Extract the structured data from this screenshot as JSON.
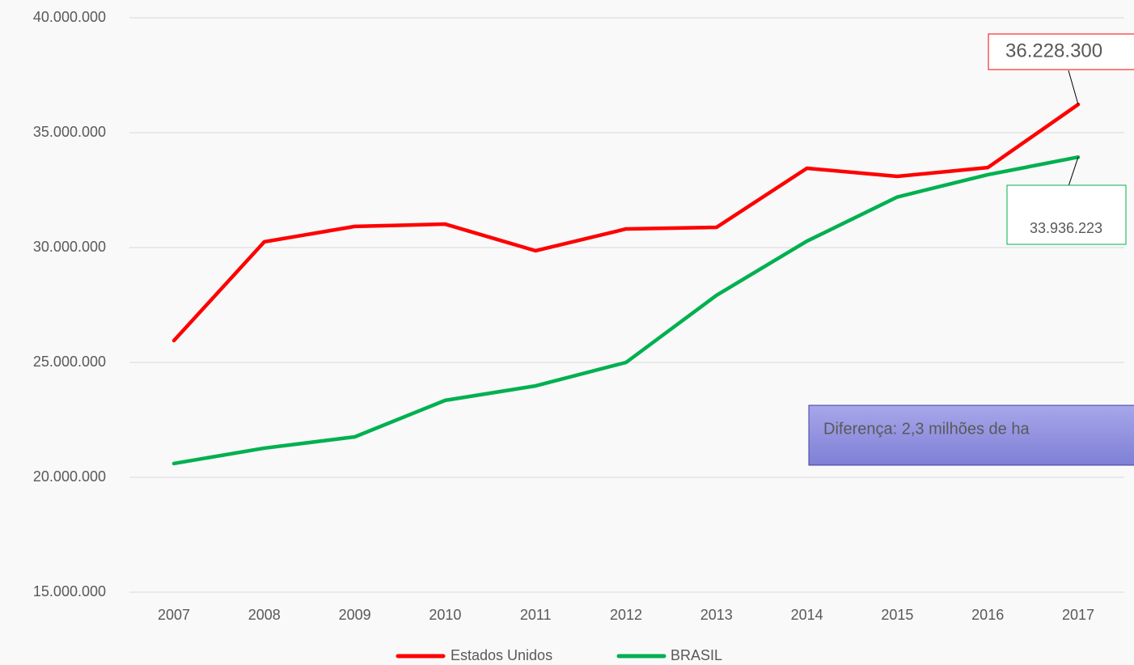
{
  "chart_data": {
    "type": "line",
    "categories": [
      "2007",
      "2008",
      "2009",
      "2010",
      "2011",
      "2012",
      "2013",
      "2014",
      "2015",
      "2016",
      "2017"
    ],
    "series": [
      {
        "name": "Estados Unidos",
        "color": "#ff0000",
        "values": [
          25950000,
          30250000,
          30920000,
          31020000,
          29860000,
          30810000,
          30880000,
          33450000,
          33100000,
          33480000,
          36228300
        ],
        "value_labels": [
          null,
          null,
          null,
          null,
          null,
          null,
          null,
          null,
          null,
          null,
          "36.228.300"
        ]
      },
      {
        "name": "BRASIL",
        "color": "#00b050",
        "values": [
          20600000,
          21270000,
          21760000,
          23350000,
          23980000,
          25000000,
          27920000,
          30280000,
          32200000,
          33170000,
          33936223
        ],
        "value_labels": [
          null,
          null,
          null,
          null,
          null,
          null,
          null,
          null,
          null,
          null,
          "33.936.223"
        ]
      }
    ],
    "ylim": [
      15000000,
      40000000
    ],
    "yticks": [
      {
        "value": 15000000,
        "label": "15.000.000"
      },
      {
        "value": 20000000,
        "label": "20.000.000"
      },
      {
        "value": 25000000,
        "label": "25.000.000"
      },
      {
        "value": 30000000,
        "label": "30.000.000"
      },
      {
        "value": 35000000,
        "label": "35.000.000"
      },
      {
        "value": 40000000,
        "label": "40.000.000"
      }
    ],
    "grid": true,
    "legend": "bottom",
    "annotations": [
      "Diferença: 2,3 milhões de ha"
    ]
  }
}
